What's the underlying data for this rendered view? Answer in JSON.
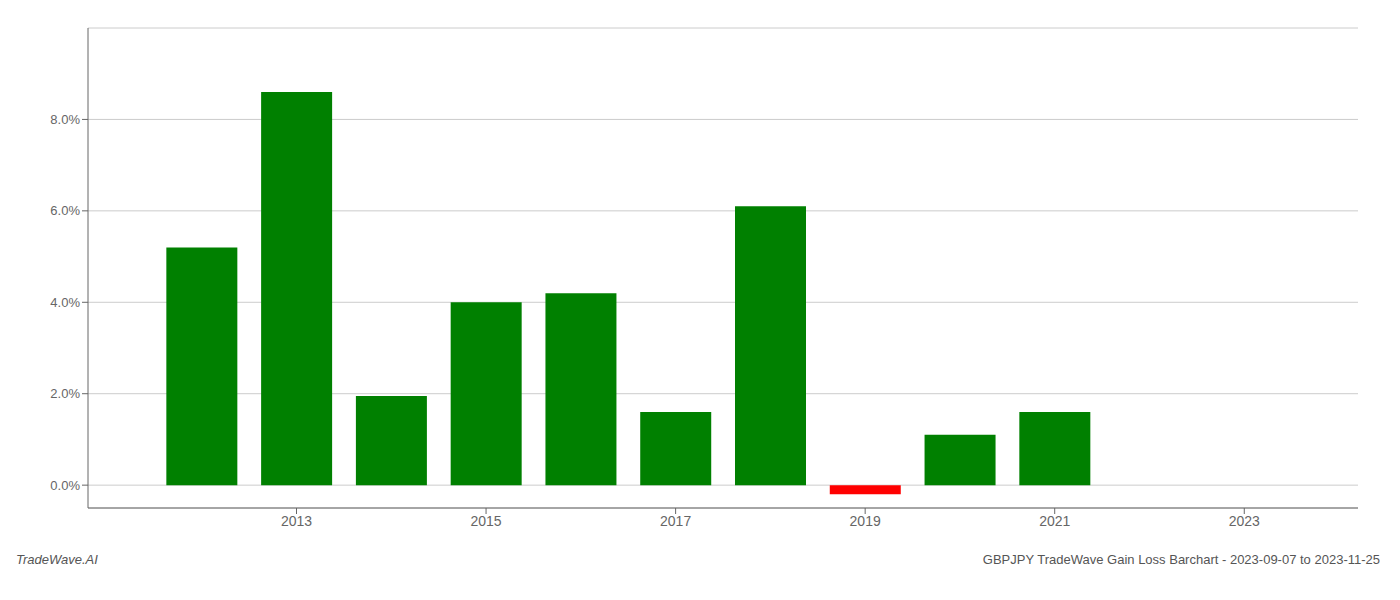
{
  "chart_data": {
    "type": "bar",
    "x": [
      2012,
      2013,
      2014,
      2015,
      2016,
      2017,
      2018,
      2019,
      2020,
      2021,
      2022
    ],
    "values": [
      0.052,
      0.086,
      0.0195,
      0.04,
      0.042,
      0.016,
      0.061,
      -0.002,
      0.011,
      0.016,
      0.0
    ],
    "colors": [
      "#008000",
      "#008000",
      "#008000",
      "#008000",
      "#008000",
      "#008000",
      "#008000",
      "#ff0000",
      "#008000",
      "#008000",
      "#008000"
    ],
    "xlim": [
      2010.8,
      2024.2
    ],
    "xticks": [
      2013,
      2015,
      2017,
      2019,
      2021,
      2023
    ],
    "ylim": [
      -0.005,
      0.1
    ],
    "yticks": [
      {
        "value": 0.0,
        "label": "0.0%"
      },
      {
        "value": 0.02,
        "label": "2.0%"
      },
      {
        "value": 0.04,
        "label": "4.0%"
      },
      {
        "value": 0.06,
        "label": "6.0%"
      },
      {
        "value": 0.08,
        "label": "8.0%"
      }
    ],
    "grid": true,
    "annotations": [
      "TradeWave.AI",
      "GBPJPY TradeWave Gain Loss Barchart - 2023-09-07 to 2023-11-25"
    ]
  }
}
